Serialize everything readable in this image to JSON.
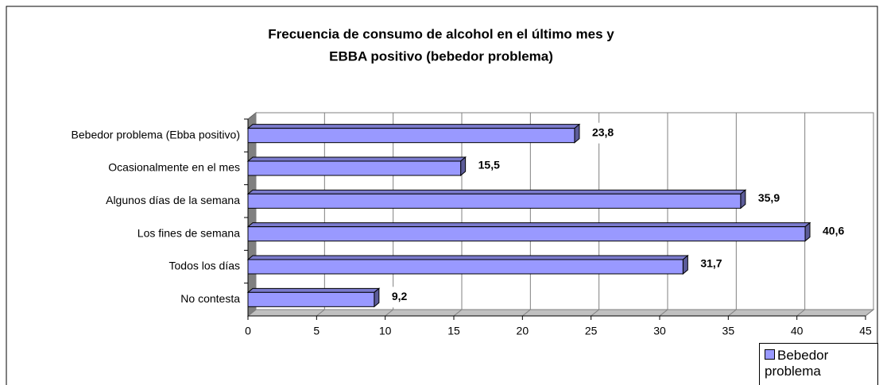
{
  "chart_data": {
    "type": "bar",
    "orientation": "horizontal",
    "title": [
      "Frecuencia de consumo de alcohol en el último mes y",
      "EBBA positivo (bebedor problema)"
    ],
    "categories": [
      "Bebedor problema (Ebba positivo)",
      "Ocasionalmente en el mes",
      "Algunos días de la semana",
      "Los fines de semana",
      "Todos los días",
      "No contesta"
    ],
    "series": [
      {
        "name": "Bebedor problema",
        "color": "#9999ff",
        "values": [
          23.8,
          15.5,
          35.9,
          40.6,
          31.7,
          9.2
        ],
        "value_labels": [
          "23,8",
          "15,5",
          "35,9",
          "40,6",
          "31,7",
          "9,2"
        ]
      }
    ],
    "xlim": [
      0,
      45
    ],
    "xticks": [
      0,
      5,
      10,
      15,
      20,
      25,
      30,
      35,
      40,
      45
    ],
    "grid": true,
    "legend": "bottom-right"
  }
}
